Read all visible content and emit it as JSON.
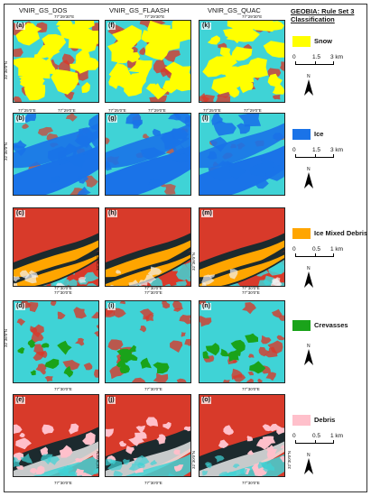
{
  "columns": [
    "VNIR_GS_DOS",
    "VNIR_GS_FLAASH",
    "VNIR_GS_QUAC"
  ],
  "legend_title": "GEOBIA: Rule Set 3 Classification",
  "panel_letters": [
    [
      "(a)",
      "(f)",
      "(k)"
    ],
    [
      "(b)",
      "(g)",
      "(l)"
    ],
    [
      "(c)",
      "(h)",
      "(m)"
    ],
    [
      "(d)",
      "(i)",
      "(n)"
    ],
    [
      "(e)",
      "(j)",
      "(o)"
    ]
  ],
  "coord_labels": {
    "row1_top": "77°29'30\"E",
    "row1_left": "32°36'0\"N",
    "row2_top_a": "77°25'0\"E",
    "row2_top_b": "77°29'0\"E",
    "row2_left": "32°36'0\"N",
    "row3_bottom": "77°30'0\"E",
    "row3_right": "32°36'0\"N",
    "row4_top": "77°30'0\"E",
    "row4_left": "32°36'0\"N",
    "row5_top": "77°30'0\"E",
    "row5_bottom": "77°30'0\"E",
    "row5_right": "32°30'0\"N"
  },
  "classes": [
    {
      "label": "Snow",
      "color": "#ffff00",
      "scale": [
        "0",
        "1.5",
        "3 km"
      ]
    },
    {
      "label": "Ice",
      "color": "#1a73e8",
      "scale": [
        "0",
        "1.5",
        "3 km"
      ]
    },
    {
      "label": "Ice Mixed Debris",
      "color": "#ffa500",
      "scale": [
        "0",
        "0.5",
        "1 km"
      ]
    },
    {
      "label": "Crevasses",
      "color": "#1aa31a",
      "scale": null
    },
    {
      "label": "Debris",
      "color": "#ffc0cb",
      "scale": [
        "0",
        "0.5",
        "1 km"
      ]
    }
  ],
  "north_label": "N",
  "palette": {
    "cyan": "#3fd3d6",
    "red": "#d83a2a",
    "dark": "#1c2a2e",
    "white": "#f2f2f2"
  }
}
